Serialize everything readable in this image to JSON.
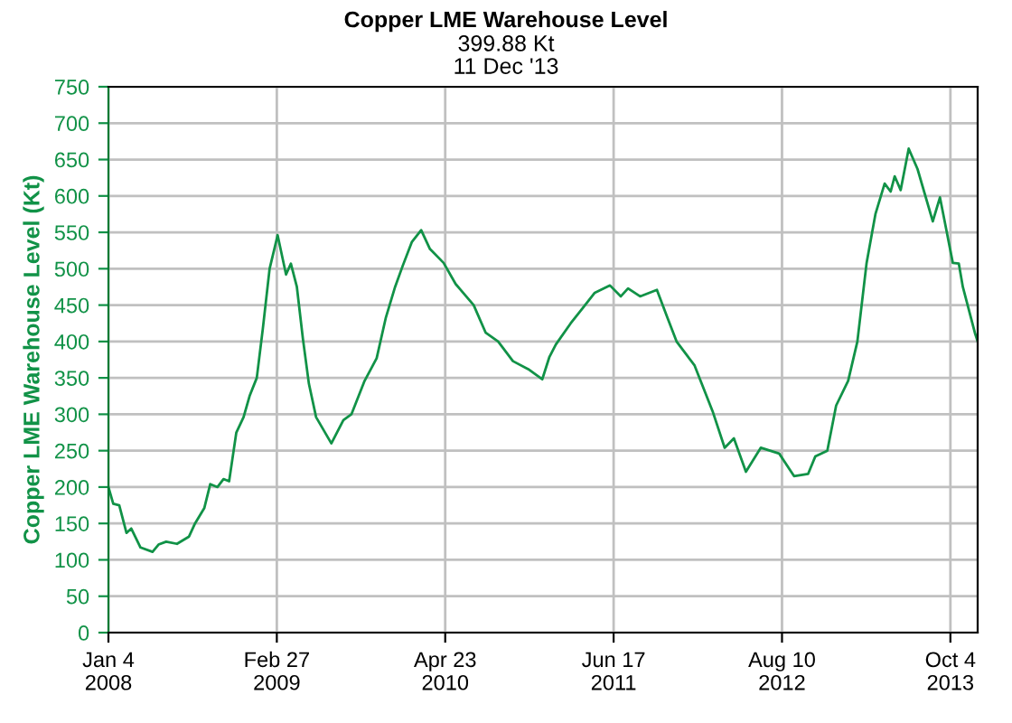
{
  "chart_data": {
    "type": "line",
    "title": "Copper LME Warehouse Level",
    "subtitle": "399.88 Kt\n11 Dec '13",
    "ylabel": "Copper LME Warehouse Level (Kt)",
    "x": [
      "2008-01-04",
      "2008-01-16",
      "2008-01-31",
      "2008-02-18",
      "2008-03-01",
      "2008-03-24",
      "2008-04-23",
      "2008-05-08",
      "2008-05-27",
      "2008-06-23",
      "2008-07-23",
      "2008-08-07",
      "2008-08-30",
      "2008-09-14",
      "2008-10-02",
      "2008-10-17",
      "2008-10-31",
      "2008-11-18",
      "2008-12-06",
      "2008-12-21",
      "2009-01-08",
      "2009-01-23",
      "2009-02-09",
      "2009-03-01",
      "2009-03-22",
      "2009-04-03",
      "2009-04-18",
      "2009-05-03",
      "2009-05-18",
      "2009-06-05",
      "2009-07-13",
      "2009-08-12",
      "2009-09-01",
      "2009-10-04",
      "2009-11-03",
      "2009-11-26",
      "2009-12-19",
      "2010-01-07",
      "2010-01-30",
      "2010-02-22",
      "2010-03-16",
      "2010-04-19",
      "2010-05-19",
      "2010-07-03",
      "2010-08-02",
      "2010-09-02",
      "2010-10-09",
      "2010-11-16",
      "2010-12-21",
      "2011-01-08",
      "2011-01-24",
      "2011-03-02",
      "2011-04-01",
      "2011-05-01",
      "2011-06-08",
      "2011-07-05",
      "2011-07-23",
      "2011-08-22",
      "2011-10-03",
      "2011-10-29",
      "2011-11-21",
      "2012-01-05",
      "2012-02-19",
      "2012-03-20",
      "2012-04-12",
      "2012-05-12",
      "2012-06-18",
      "2012-08-03",
      "2012-09-09",
      "2012-10-14",
      "2012-11-01",
      "2012-12-01",
      "2012-12-23",
      "2013-01-22",
      "2013-02-14",
      "2013-03-09",
      "2013-03-31",
      "2013-04-23",
      "2013-05-08",
      "2013-05-18",
      "2013-06-02",
      "2013-06-22",
      "2013-07-14",
      "2013-08-21",
      "2013-09-08",
      "2013-10-10",
      "2013-10-25",
      "2013-11-04",
      "2013-12-04",
      "2013-12-11"
    ],
    "series": [
      {
        "color": "#119247",
        "values": [
          200,
          177,
          175,
          137,
          143,
          117,
          111,
          121,
          125,
          122,
          132,
          150,
          171,
          204,
          200,
          211,
          208,
          275,
          296,
          325,
          350,
          417,
          500,
          546,
          492,
          507,
          475,
          404,
          342,
          296,
          260,
          292,
          300,
          346,
          377,
          433,
          475,
          504,
          537,
          553,
          527,
          508,
          479,
          450,
          412,
          400,
          373,
          362,
          348,
          379,
          396,
          425,
          446,
          467,
          477,
          462,
          473,
          462,
          471,
          433,
          400,
          367,
          304,
          254,
          267,
          221,
          254,
          246,
          215,
          218,
          242,
          250,
          312,
          346,
          400,
          508,
          575,
          617,
          606,
          627,
          608,
          665,
          637,
          565,
          598,
          508,
          507,
          475,
          412,
          400
        ]
      }
    ],
    "xlim": [
      "2008-01-04",
      "2013-12-11"
    ],
    "xticks": [
      {
        "value": "2008-01-04",
        "label": "Jan 4\n2008"
      },
      {
        "value": "2009-02-27",
        "label": "Feb 27\n2009"
      },
      {
        "value": "2010-04-23",
        "label": "Apr 23\n2010"
      },
      {
        "value": "2011-06-17",
        "label": "Jun 17\n2011"
      },
      {
        "value": "2012-08-10",
        "label": "Aug 10\n2012"
      },
      {
        "value": "2013-10-04",
        "label": "Oct 4\n2013"
      }
    ],
    "ylim": [
      0,
      750
    ],
    "yticks": [
      0,
      50,
      100,
      150,
      200,
      250,
      300,
      350,
      400,
      450,
      500,
      550,
      600,
      650,
      700,
      750
    ],
    "grid": true,
    "legend": false,
    "marker": "none",
    "line_style": "solid"
  }
}
